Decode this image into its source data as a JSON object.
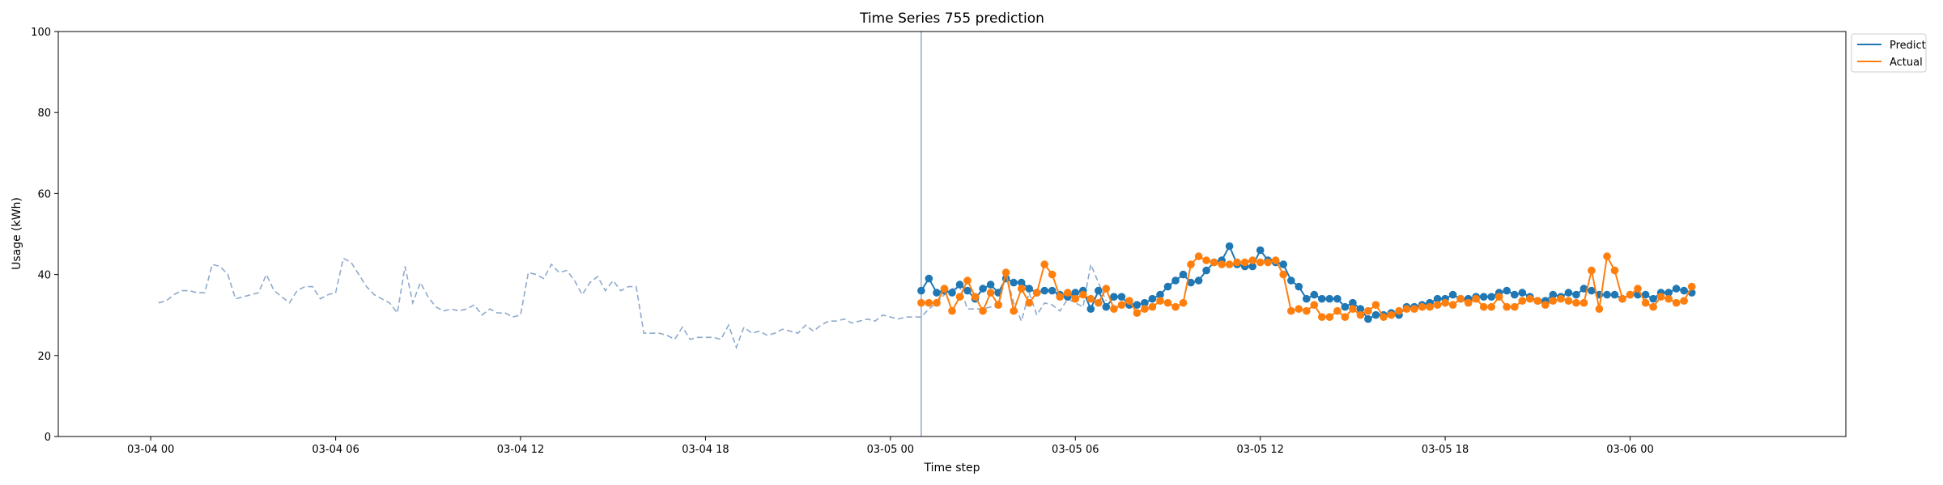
{
  "chart_data": {
    "type": "line",
    "title": "Time Series 755 prediction",
    "xlabel": "Time step",
    "ylabel": "Usage (kWh)",
    "ylim": [
      0,
      100
    ],
    "xlim": [
      "2023-03-03T21:00",
      "2023-03-06T07:00"
    ],
    "x_ticks": [
      {
        "t": "2023-03-04T00:00",
        "label": "03-04 00"
      },
      {
        "t": "2023-03-04T06:00",
        "label": "03-04 06"
      },
      {
        "t": "2023-03-04T12:00",
        "label": "03-04 12"
      },
      {
        "t": "2023-03-04T18:00",
        "label": "03-04 18"
      },
      {
        "t": "2023-03-05T00:00",
        "label": "03-05 00"
      },
      {
        "t": "2023-03-05T06:00",
        "label": "03-05 06"
      },
      {
        "t": "2023-03-05T12:00",
        "label": "03-05 12"
      },
      {
        "t": "2023-03-05T18:00",
        "label": "03-05 18"
      },
      {
        "t": "2023-03-06T00:00",
        "label": "03-06 00"
      }
    ],
    "y_ticks": [
      0,
      20,
      40,
      60,
      80,
      100
    ],
    "grid": false,
    "legend_position": "outside top-right",
    "forecast_start": "2023-03-05T01:00",
    "colors": {
      "history": "#8fa9cc",
      "predict": "#1f77b4",
      "actual": "#ff7f0e",
      "forecast_line": "#8fa9cc"
    },
    "history": {
      "start": "2023-03-04T00:15",
      "step_minutes": 15,
      "values": [
        33,
        33.5,
        35,
        36,
        36,
        35.5,
        35.5,
        42.5,
        42,
        40,
        34,
        34.5,
        35,
        35.5,
        40,
        36,
        34.5,
        33,
        36,
        37,
        37,
        34,
        35,
        35.5,
        44,
        43,
        40,
        37,
        35,
        34,
        33,
        30.5,
        42,
        33,
        38,
        34.5,
        32,
        31,
        31.5,
        31,
        31.5,
        32.5,
        30,
        31.5,
        30.5,
        30.5,
        29.5,
        30,
        40.5,
        40,
        39,
        42.5,
        40.5,
        41,
        38.5,
        35,
        38,
        39.5,
        36,
        38.5,
        36,
        37,
        37,
        25.5,
        25.5,
        25.5,
        25,
        24,
        27,
        24,
        24.5,
        24.5,
        24.5,
        24,
        27.5,
        22,
        27,
        25.5,
        26,
        25,
        25.5,
        26.5,
        26,
        25.5,
        27.5,
        26,
        27.5,
        28.5,
        28.5,
        29,
        28,
        28.5,
        29,
        28.5,
        30,
        29.5,
        29,
        29.5,
        29.5,
        29.5,
        31.5,
        33,
        35,
        36.5,
        37,
        31.5,
        31.5,
        31.5,
        32,
        32,
        40,
        33,
        28.5,
        35.5,
        30,
        33,
        32.5,
        31,
        34,
        33,
        32,
        42.5,
        38,
        33.5
      ]
    },
    "series": [
      {
        "name": "Predict",
        "start": "2023-03-05T01:00",
        "step_minutes": 15,
        "values": [
          36,
          39,
          35.5,
          36,
          35.5,
          37.5,
          36,
          34,
          36.5,
          37.5,
          35.5,
          39,
          38,
          38,
          36.5,
          35.5,
          36,
          36,
          35,
          34.5,
          35.5,
          36,
          31.5,
          36,
          32,
          34.5,
          34.5,
          32.5,
          32.5,
          33,
          34,
          35,
          37,
          38.5,
          40,
          38,
          38.5,
          41,
          43,
          43.5,
          47,
          42.5,
          42,
          42,
          46,
          43.5,
          43,
          42.5,
          38.5,
          37,
          34,
          35,
          34,
          34,
          34,
          32,
          33,
          31.5,
          29,
          30,
          30,
          30.5,
          30,
          32,
          32,
          32.5,
          33,
          34,
          34,
          35,
          34,
          34,
          34.5,
          34.5,
          34.5,
          35.5,
          36,
          35,
          35.5,
          34.5,
          33.5,
          33.5,
          35,
          34.5,
          35.5,
          35,
          36.5,
          36,
          35,
          35,
          35,
          34,
          35,
          35,
          35,
          34,
          35.5,
          35.5,
          36.5,
          36,
          35.5
        ]
      },
      {
        "name": "Actual",
        "start": "2023-03-05T01:00",
        "step_minutes": 15,
        "values": [
          33,
          33,
          33,
          36.5,
          31,
          34.5,
          38.5,
          34.5,
          31,
          35.5,
          32.5,
          40.5,
          31,
          36.5,
          33,
          35.5,
          42.5,
          40,
          34.5,
          35.5,
          34,
          35,
          34,
          33,
          36.5,
          31.5,
          32.5,
          33.5,
          30.5,
          31.5,
          32,
          33.5,
          33,
          32,
          33,
          42.5,
          44.5,
          43.5,
          43,
          42.5,
          42.5,
          43,
          43,
          43.5,
          43,
          43,
          43.5,
          40,
          31,
          31.5,
          31,
          32.5,
          29.5,
          29.5,
          31,
          29.5,
          31.5,
          30,
          31,
          32.5,
          29.5,
          30,
          31,
          31.5,
          31.5,
          32,
          32,
          32.5,
          33,
          32.5,
          34,
          33,
          34,
          32,
          32,
          34.5,
          32,
          32,
          33.5,
          34,
          33.5,
          32.5,
          33.5,
          34,
          33.5,
          33,
          33,
          41,
          31.5,
          44.5,
          41,
          34,
          35,
          36.5,
          33,
          32,
          34.5,
          34,
          33,
          33.5,
          37
        ]
      }
    ]
  }
}
